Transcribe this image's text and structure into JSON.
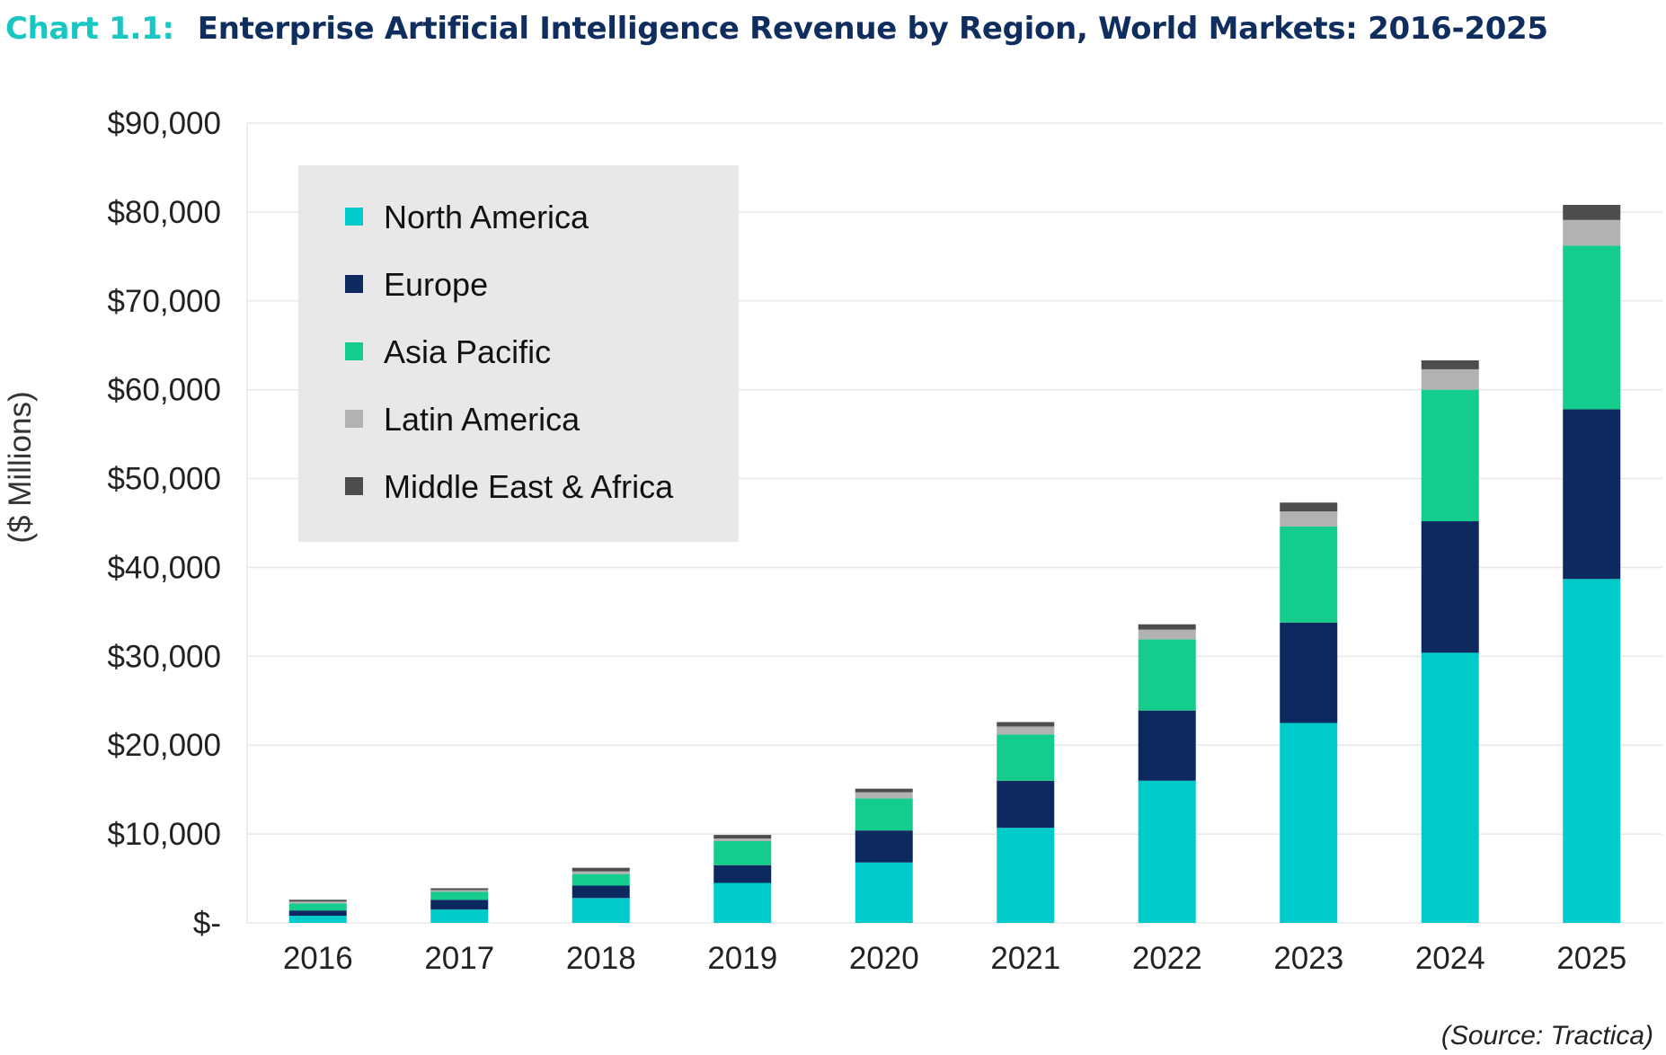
{
  "title": {
    "prefix": "Chart 1.1:",
    "text": "Enterprise Artificial Intelligence Revenue by Region, World Markets: 2016-2025"
  },
  "source": "(Source: Tractica)",
  "colors": {
    "North America": "#00cbcb",
    "Europe": "#0d2a60",
    "Asia Pacific": "#14cc8c",
    "Latin America": "#b2b2b2",
    "Middle East & Africa": "#4d4d4d",
    "gridline": "#e8e8e8",
    "legend_bg": "#e8e8e8"
  },
  "chart_data": {
    "type": "bar",
    "stacked": true,
    "ylabel": "($ Millions)",
    "ylim": [
      0,
      90000
    ],
    "yticks": [
      0,
      10000,
      20000,
      30000,
      40000,
      50000,
      60000,
      70000,
      80000,
      90000
    ],
    "ytick_labels": [
      "$-",
      "$10,000",
      "$20,000",
      "$30,000",
      "$40,000",
      "$50,000",
      "$60,000",
      "$70,000",
      "$80,000",
      "$90,000"
    ],
    "grid": true,
    "legend_position": "top-left",
    "categories": [
      "2016",
      "2017",
      "2018",
      "2019",
      "2020",
      "2021",
      "2022",
      "2023",
      "2024",
      "2025"
    ],
    "series": [
      {
        "name": "North America",
        "values": [
          800,
          1500,
          2800,
          4500,
          6800,
          10700,
          16000,
          22500,
          30400,
          38700
        ]
      },
      {
        "name": "Europe",
        "values": [
          600,
          1100,
          1400,
          2000,
          3600,
          5300,
          7900,
          11300,
          14800,
          19100
        ]
      },
      {
        "name": "Asia Pacific",
        "values": [
          800,
          900,
          1300,
          2700,
          3600,
          5200,
          8000,
          10800,
          14800,
          18400
        ]
      },
      {
        "name": "Latin America",
        "values": [
          200,
          200,
          300,
          300,
          700,
          900,
          1100,
          1700,
          2300,
          2900
        ]
      },
      {
        "name": "Middle East & Africa",
        "values": [
          200,
          200,
          400,
          400,
          400,
          500,
          600,
          1000,
          1000,
          1700
        ]
      }
    ]
  }
}
